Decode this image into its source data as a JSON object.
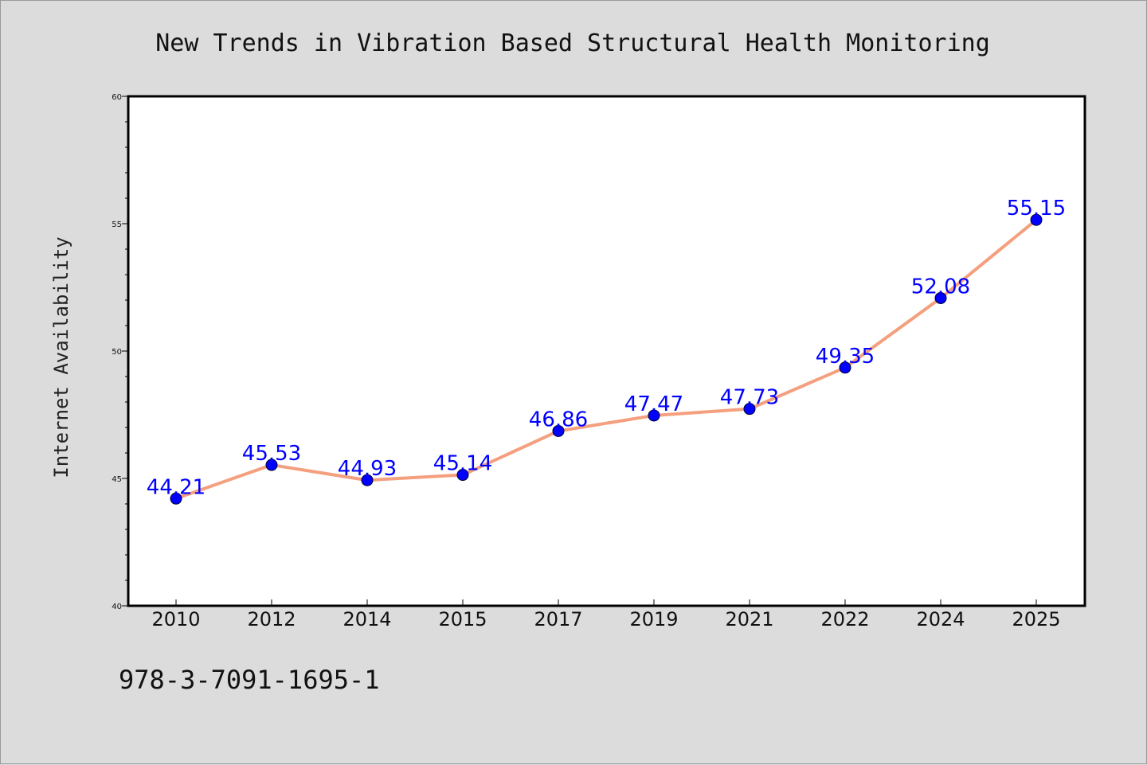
{
  "chart_data": {
    "type": "line",
    "title": "New Trends in Vibration Based Structural Health Monitoring",
    "ylabel": "Internet Availability",
    "xlabel": "",
    "categories": [
      "2010",
      "2012",
      "2014",
      "2015",
      "2017",
      "2019",
      "2021",
      "2022",
      "2024",
      "2025"
    ],
    "series": [
      {
        "values": [
          44.21,
          45.53,
          44.93,
          45.14,
          46.86,
          47.47,
          47.73,
          49.35,
          52.08,
          55.15
        ],
        "data_labels": [
          "44.21",
          "45.53",
          "44.93",
          "45.14",
          "46.86",
          "47.47",
          "47.73",
          "49.35",
          "52.08",
          "55.15"
        ],
        "line_color": "#f4a07e",
        "marker_color": "#0000ff"
      }
    ],
    "ylim": [
      40,
      60
    ],
    "yticks": [
      "40",
      "45",
      "50",
      "55",
      "60"
    ],
    "grid": false,
    "legend": false
  },
  "footer": {
    "isbn": "978-3-7091-1695-1"
  },
  "colors": {
    "background": "#dcdcdc",
    "plot_background": "#ffffff",
    "data_label": "#0000ff"
  }
}
